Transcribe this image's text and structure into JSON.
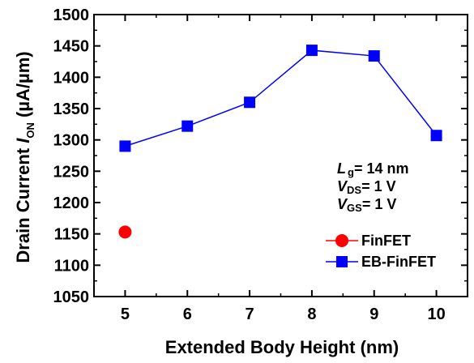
{
  "chart_data": {
    "type": "scatter",
    "xlabel": "Extended Body Height (nm)",
    "ylabel_prefix": "Drain Current  ",
    "ylabel_symbol": "I",
    "ylabel_subscript": "ON",
    "ylabel_unit": " (µA/µm)",
    "xlim": [
      4.5,
      10.5
    ],
    "ylim": [
      1050,
      1500
    ],
    "xticks": [
      5,
      6,
      7,
      8,
      9,
      10
    ],
    "yticks": [
      1050,
      1100,
      1150,
      1200,
      1250,
      1300,
      1350,
      1400,
      1450,
      1500
    ],
    "series": [
      {
        "name": "FinFET",
        "marker": "circle",
        "line": false,
        "color": "#ff0000",
        "x": [
          5
        ],
        "y": [
          1153
        ]
      },
      {
        "name": "EB-FinFET",
        "marker": "square",
        "line": true,
        "color": "#0000ff",
        "x": [
          5,
          6,
          7,
          8,
          9,
          10
        ],
        "y": [
          1290,
          1322,
          1360,
          1443,
          1434,
          1307
        ]
      }
    ],
    "annotations": [
      {
        "symbol": "L",
        "subscript": "g",
        "text": "= 14 nm"
      },
      {
        "symbol": "V",
        "subscript": "DS",
        "text": "= 1 V"
      },
      {
        "symbol": "V",
        "subscript": "GS",
        "text": "= 1 V"
      }
    ],
    "legend_position": "bottom-right",
    "grid": false
  }
}
